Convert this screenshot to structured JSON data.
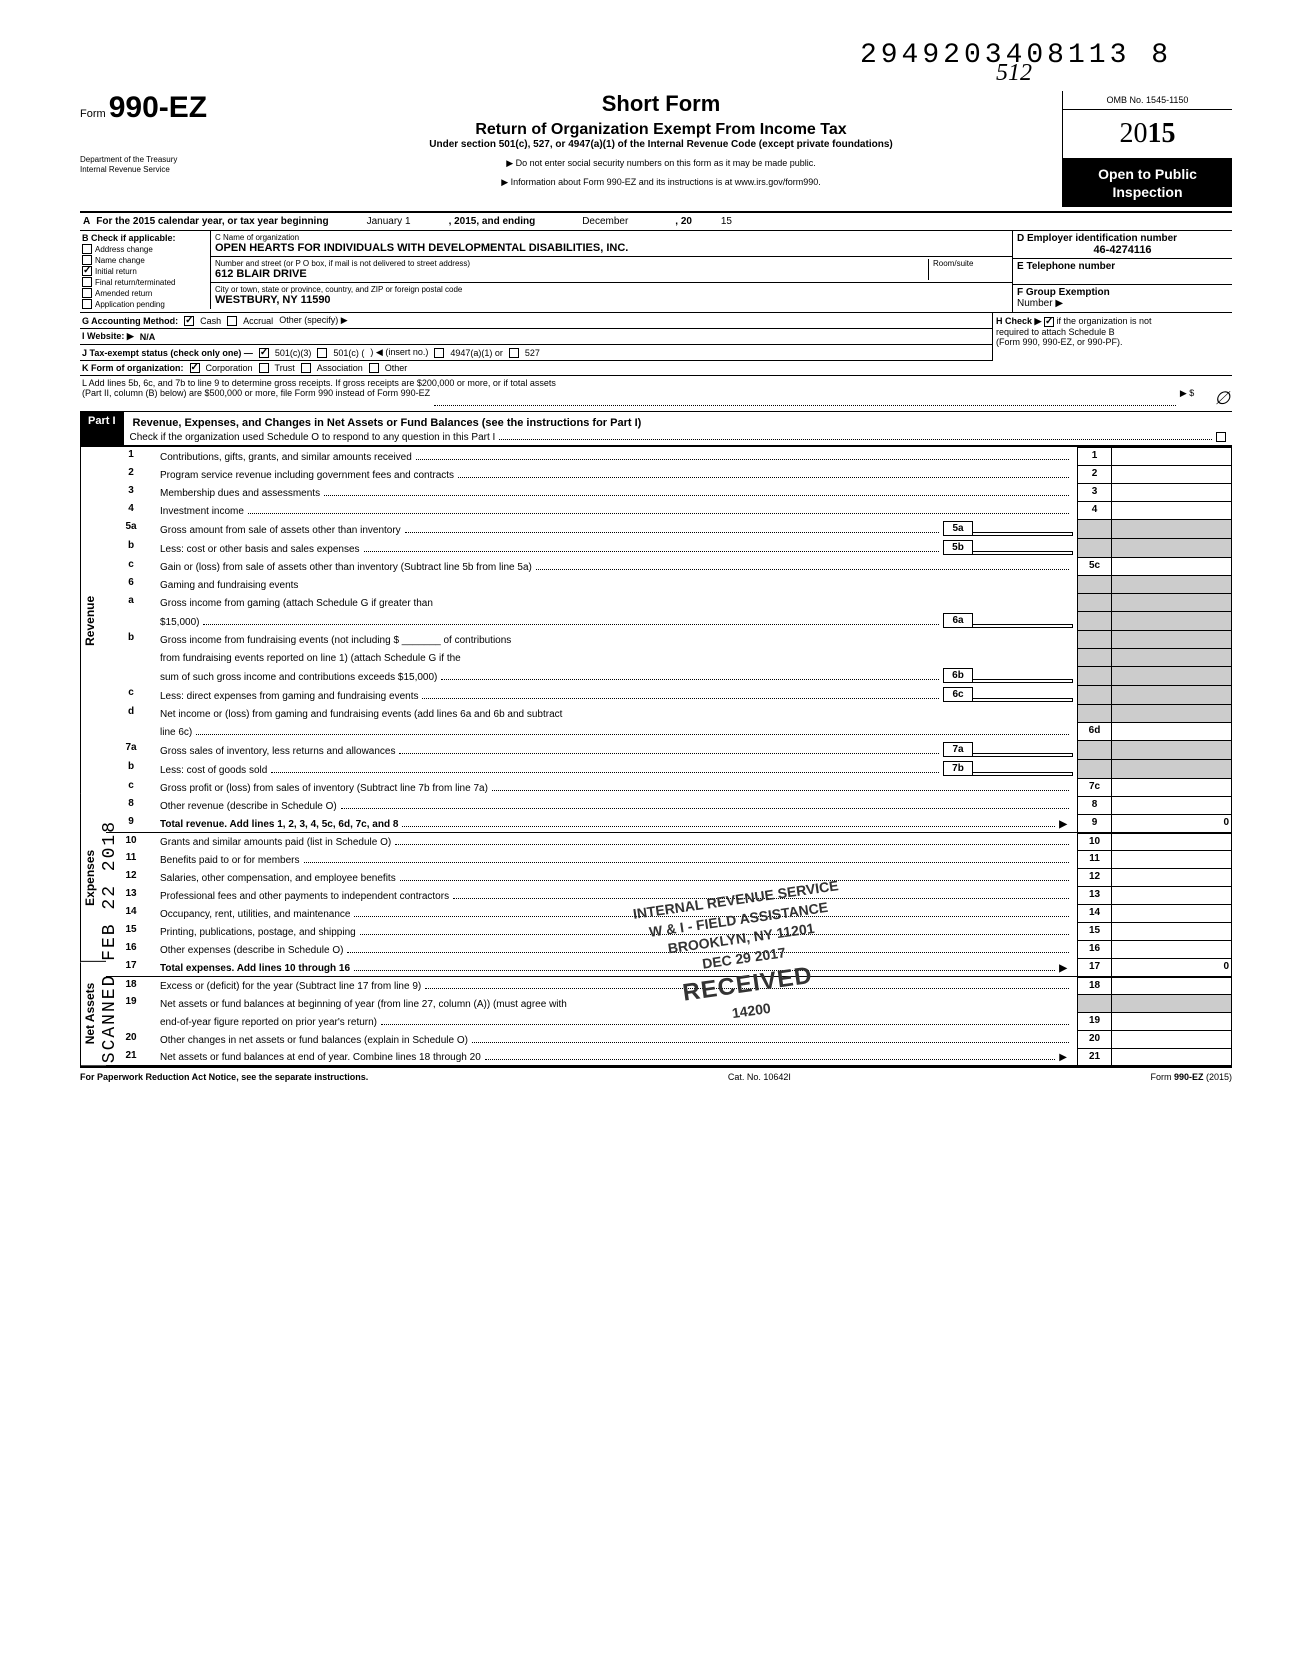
{
  "header_number": "2949203408113  8",
  "form": {
    "form_label": "Form",
    "form_number": "990-EZ",
    "dept1": "Department of the Treasury",
    "dept2": "Internal Revenue Service",
    "title": "Short Form",
    "subtitle": "Return of Organization Exempt From Income Tax",
    "under": "Under section 501(c), 527, or 4947(a)(1) of the Internal Revenue Code (except private foundations)",
    "arrow1": "▶ Do not enter social security numbers on this form as it may be made public.",
    "arrow2": "▶ Information about Form 990-EZ and its instructions is at www.irs.gov/form990.",
    "omb": "OMB No. 1545-1150",
    "year": "2015",
    "open_public1": "Open to Public",
    "open_public2": "Inspection",
    "handwritten_year": "512"
  },
  "row_a": {
    "prefix": "A",
    "text1": "For the 2015 calendar year, or tax year beginning",
    "text2": "January 1",
    "text3": ", 2015, and ending",
    "text4": "December",
    "text5": ", 20",
    "text6": "15"
  },
  "col_b": {
    "label": "B  Check if applicable:",
    "items": [
      "Address change",
      "Name change",
      "Initial return",
      "Final return/terminated",
      "Amended return",
      "Application pending"
    ],
    "checked_index": 2
  },
  "col_c": {
    "c_label": "C  Name of organization",
    "c_value": "OPEN HEARTS FOR INDIVIDUALS WITH DEVELOPMENTAL DISABILITIES, INC.",
    "addr_label": "Number and street (or P O  box, if mail is not delivered to street address)",
    "addr_room": "Room/suite",
    "addr_value": "612 BLAIR DRIVE",
    "city_label": "City or town, state or province, country, and ZIP or foreign postal code",
    "city_value": "WESTBURY, NY 11590"
  },
  "col_de": {
    "d_label": "D Employer identification number",
    "d_value": "46-4274116",
    "e_label": "E  Telephone number",
    "f_label": "F  Group Exemption",
    "f_label2": "Number ▶"
  },
  "row_g": {
    "g": "G  Accounting Method:",
    "cash": "Cash",
    "accrual": "Accrual",
    "other": "Other (specify) ▶"
  },
  "row_h": {
    "h": "H  Check ▶",
    "text": "if the organization is not",
    "text2": "required to attach Schedule B",
    "text3": "(Form 990, 990-EZ, or 990-PF)."
  },
  "row_i": {
    "i": "I   Website: ▶",
    "val": "N/A"
  },
  "row_j": {
    "j": "J  Tax-exempt status (check only one) —",
    "a": "501(c)(3)",
    "b": "501(c) (",
    "c": ") ◀ (insert no.)",
    "d": "4947(a)(1) or",
    "e": "527"
  },
  "row_k": {
    "k": "K  Form of organization:",
    "a": "Corporation",
    "b": "Trust",
    "c": "Association",
    "d": "Other"
  },
  "row_l": {
    "l1": "L  Add lines 5b, 6c, and 7b to line 9 to determine gross receipts. If gross receipts are $200,000 or more, or if total assets",
    "l2": "(Part II, column (B) below) are $500,000 or more, file Form 990 instead of Form 990-EZ",
    "arrow": "▶  $"
  },
  "part1": {
    "label": "Part I",
    "title": "Revenue, Expenses, and Changes in Net Assets or Fund Balances (see the instructions for Part I)",
    "check": "Check if the organization used Schedule O to respond to any question in this Part I"
  },
  "side_labels": {
    "revenue": "Revenue",
    "expenses": "Expenses",
    "netassets": "Net Assets"
  },
  "lines": {
    "1": {
      "n": "1",
      "d": "Contributions, gifts, grants, and similar amounts received",
      "box": "1"
    },
    "2": {
      "n": "2",
      "d": "Program service revenue including government fees and contracts",
      "box": "2"
    },
    "3": {
      "n": "3",
      "d": "Membership dues and assessments",
      "box": "3"
    },
    "4": {
      "n": "4",
      "d": "Investment income",
      "box": "4"
    },
    "5a": {
      "n": "5a",
      "d": "Gross amount from sale of assets other than inventory",
      "box": "5a"
    },
    "5b": {
      "n": "b",
      "d": "Less: cost or other basis and sales expenses",
      "box": "5b"
    },
    "5c": {
      "n": "c",
      "d": "Gain or (loss) from sale of assets other than inventory (Subtract line 5b from line 5a)",
      "box": "5c"
    },
    "6": {
      "n": "6",
      "d": "Gaming and fundraising events"
    },
    "6a": {
      "n": "a",
      "d": "Gross income from gaming (attach Schedule G if greater than",
      "d2": "$15,000)",
      "box": "6a"
    },
    "6b": {
      "n": "b",
      "d": "Gross income from fundraising events (not including  $",
      "d2": "of contributions",
      "d3": "from fundraising events reported on line 1) (attach Schedule G if the",
      "d4": "sum of such gross income and contributions exceeds $15,000)",
      "box": "6b"
    },
    "6c": {
      "n": "c",
      "d": "Less: direct expenses from gaming and fundraising events",
      "box": "6c"
    },
    "6d": {
      "n": "d",
      "d": "Net income or (loss) from gaming and fundraising events (add lines 6a and 6b and subtract",
      "d2": "line 6c)",
      "box": "6d"
    },
    "7a": {
      "n": "7a",
      "d": "Gross sales of inventory, less returns and allowances",
      "box": "7a"
    },
    "7b": {
      "n": "b",
      "d": "Less: cost of goods sold",
      "box": "7b"
    },
    "7c": {
      "n": "c",
      "d": "Gross profit or (loss) from sales of inventory (Subtract line 7b from line 7a)",
      "box": "7c"
    },
    "8": {
      "n": "8",
      "d": "Other revenue (describe in Schedule O)",
      "box": "8"
    },
    "9": {
      "n": "9",
      "d": "Total revenue. Add lines 1, 2, 3, 4, 5c, 6d, 7c, and 8",
      "box": "9",
      "val": "0",
      "arrow": "▶"
    },
    "10": {
      "n": "10",
      "d": "Grants and similar amounts paid (list in Schedule O)",
      "box": "10"
    },
    "11": {
      "n": "11",
      "d": "Benefits paid to or for members",
      "box": "11"
    },
    "12": {
      "n": "12",
      "d": "Salaries, other compensation, and employee benefits",
      "box": "12"
    },
    "13": {
      "n": "13",
      "d": "Professional fees and other payments to independent contractors",
      "box": "13"
    },
    "14": {
      "n": "14",
      "d": "Occupancy, rent, utilities, and maintenance",
      "box": "14"
    },
    "15": {
      "n": "15",
      "d": "Printing, publications, postage, and shipping",
      "box": "15"
    },
    "16": {
      "n": "16",
      "d": "Other expenses (describe in Schedule O)",
      "box": "16"
    },
    "17": {
      "n": "17",
      "d": "Total expenses. Add lines 10 through 16",
      "box": "17",
      "val": "0",
      "arrow": "▶"
    },
    "18": {
      "n": "18",
      "d": "Excess or (deficit) for the year (Subtract line 17 from line 9)",
      "box": "18"
    },
    "19": {
      "n": "19",
      "d": "Net assets or fund balances at beginning of year (from line 27, column (A)) (must agree with",
      "d2": "end-of-year figure reported on prior year's return)",
      "box": "19"
    },
    "20": {
      "n": "20",
      "d": "Other changes in net assets or fund balances (explain in Schedule O)",
      "box": "20"
    },
    "21": {
      "n": "21",
      "d": "Net assets or fund balances at end of year. Combine lines 18 through 20",
      "box": "21",
      "arrow": "▶"
    }
  },
  "footer": {
    "left": "For Paperwork Reduction Act Notice, see the separate instructions.",
    "mid": "Cat. No. 10642I",
    "right": "Form 990-EZ (2015)"
  },
  "stamp": {
    "l1": "INTERNAL REVENUE SERVICE",
    "l2": "W & I - FIELD ASSISTANCE",
    "l3": "BROOKLYN, NY  11201",
    "l4": "DEC 29 2017",
    "l5": "RECEIVED",
    "l6": "14200"
  },
  "scanned_stamp": "SCANNED FEB 22 2018"
}
